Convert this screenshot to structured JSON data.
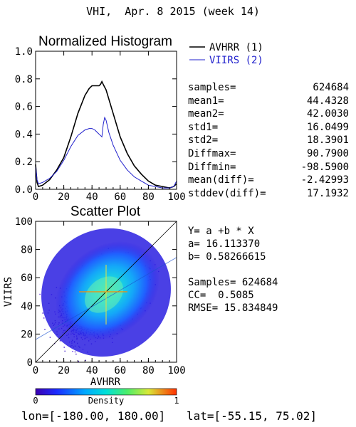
{
  "header": {
    "title": "VHI,  Apr. 8 2015 (week 14)"
  },
  "footer": {
    "lon_label": "lon=[-180.00, 180.00]",
    "lat_label": "lat=[-55.15, 75.02]"
  },
  "colorbar": {
    "label": "Density",
    "min_label": "0",
    "max_label": "1"
  },
  "stats": [
    {
      "label": "samples=",
      "value": "624684"
    },
    {
      "label": "mean1=",
      "value": "44.4328"
    },
    {
      "label": "mean2=",
      "value": "42.0030"
    },
    {
      "label": "std1=",
      "value": "16.0499"
    },
    {
      "label": "std2=",
      "value": "18.3901"
    },
    {
      "label": "Diffmax=",
      "value": "90.7900"
    },
    {
      "label": "Diffmin=",
      "value": "-98.5900"
    },
    {
      "label": "mean(diff)=",
      "value": "-2.42993"
    },
    {
      "label": "stddev(diff)=",
      "value": "17.1932"
    }
  ],
  "fit": {
    "equation": "Y= a +b * X",
    "a_label": "a= 16.113370",
    "b_label": "b= 0.58266615",
    "samples_label": "Samples= 624684",
    "cc_label": "CC=  0.5085",
    "rmse_label": "RMSE= 15.834849"
  },
  "colors": {
    "avhrr": "#000000",
    "viirs": "#1f1fcc"
  },
  "chart_data": [
    {
      "type": "line",
      "title": "Normalized Histogram",
      "xlabel": "",
      "ylabel": "",
      "xlim": [
        0,
        100
      ],
      "ylim": [
        0,
        1.0
      ],
      "xticks": [
        "0",
        "20",
        "40",
        "60",
        "80",
        "100"
      ],
      "yticks": [
        "0.0",
        "0.2",
        "0.4",
        "0.6",
        "0.8",
        "1.0"
      ],
      "legend_position": "right",
      "series": [
        {
          "name": "AVHRR (1)",
          "color": "#000000",
          "x": [
            0,
            1,
            2,
            5,
            10,
            15,
            20,
            25,
            30,
            35,
            38,
            40,
            42,
            44,
            45,
            46,
            47,
            48,
            50,
            55,
            60,
            65,
            70,
            75,
            80,
            85,
            90,
            95,
            98,
            100
          ],
          "y": [
            0.18,
            0.05,
            0.02,
            0.03,
            0.07,
            0.14,
            0.23,
            0.38,
            0.55,
            0.68,
            0.73,
            0.75,
            0.75,
            0.75,
            0.75,
            0.76,
            0.78,
            0.76,
            0.72,
            0.55,
            0.38,
            0.26,
            0.17,
            0.11,
            0.06,
            0.03,
            0.02,
            0.01,
            0.02,
            0.04
          ]
        },
        {
          "name": "VIIRS (2)",
          "color": "#1f1fcc",
          "x": [
            0,
            1,
            2,
            5,
            10,
            15,
            20,
            25,
            30,
            35,
            38,
            40,
            42,
            44,
            46,
            47,
            48,
            49,
            50,
            52,
            55,
            60,
            65,
            70,
            75,
            80,
            85,
            90,
            95,
            98,
            100
          ],
          "y": [
            0.17,
            0.07,
            0.04,
            0.05,
            0.08,
            0.13,
            0.21,
            0.31,
            0.39,
            0.43,
            0.44,
            0.44,
            0.43,
            0.41,
            0.39,
            0.38,
            0.47,
            0.52,
            0.5,
            0.41,
            0.32,
            0.21,
            0.14,
            0.09,
            0.06,
            0.03,
            0.02,
            0.01,
            0.01,
            0.02,
            0.06
          ]
        }
      ]
    },
    {
      "type": "scatter",
      "title": "Scatter Plot",
      "xlabel": "AVHRR",
      "ylabel": "VIIRS",
      "xlim": [
        0,
        100
      ],
      "ylim": [
        0,
        100
      ],
      "xticks": [
        "0",
        "20",
        "40",
        "60",
        "80",
        "100"
      ],
      "yticks": [
        "0",
        "20",
        "40",
        "60",
        "80",
        "100"
      ],
      "mean_point": [
        50,
        50
      ],
      "center": [
        45,
        45
      ],
      "fit_line": {
        "intercept": 16.11337,
        "slope": 0.58266615
      },
      "colorbar_range": [
        0,
        1
      ]
    }
  ]
}
